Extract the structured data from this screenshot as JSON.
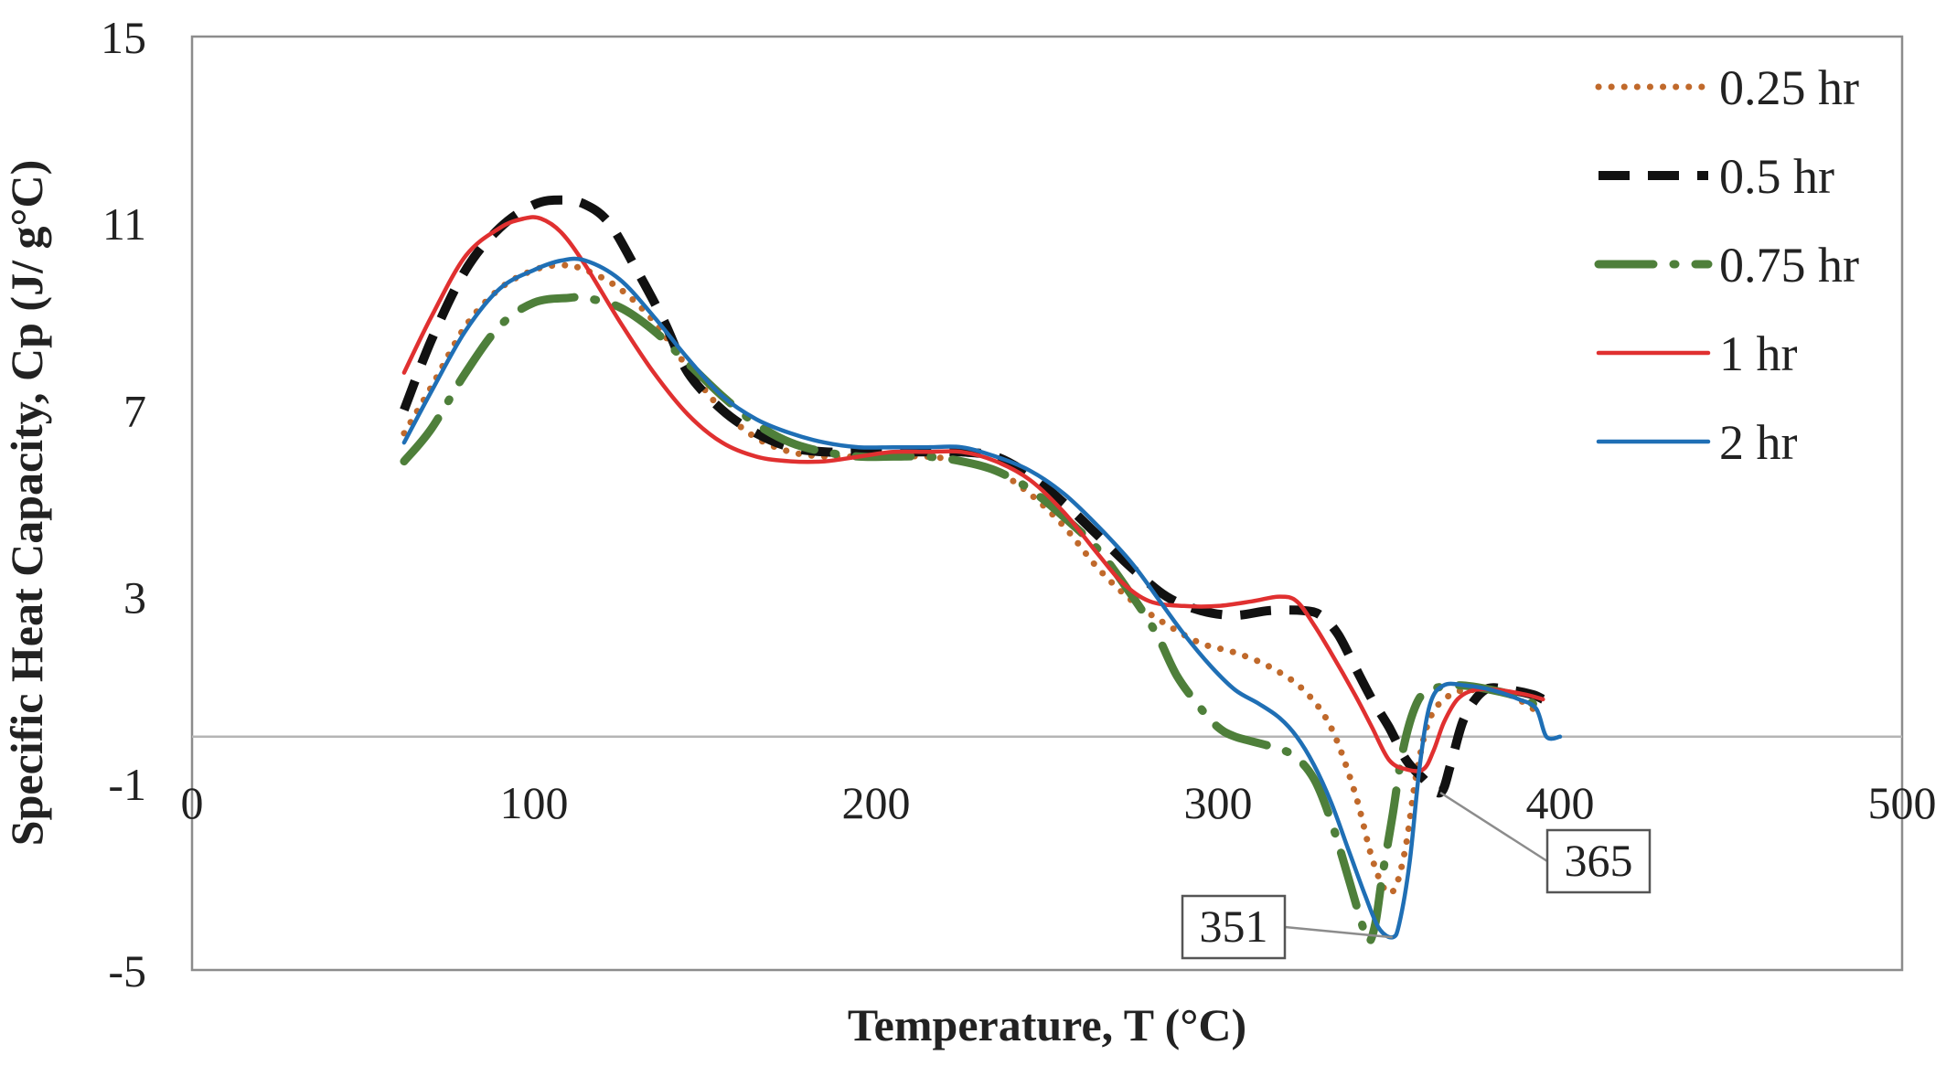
{
  "chart_data": {
    "type": "line",
    "xlabel": "Temperature, T (°C)",
    "ylabel": "Specific Heat Capacity, Cp (J/ g°C)",
    "xlim": [
      0,
      500
    ],
    "ylim": [
      -5,
      15
    ],
    "x_ticks": [
      0,
      100,
      200,
      300,
      400,
      500
    ],
    "y_ticks": [
      -5,
      -1,
      3,
      7,
      11,
      15
    ],
    "grid": false,
    "zero_line": true,
    "legend_position": "top-right",
    "series": [
      {
        "name": "0.25 hr",
        "color": "#c0692b",
        "style": "dotted",
        "points": [
          [
            62,
            6.5
          ],
          [
            70,
            7.5
          ],
          [
            80,
            8.8
          ],
          [
            90,
            9.6
          ],
          [
            100,
            10.0
          ],
          [
            108,
            10.1
          ],
          [
            115,
            10.0
          ],
          [
            125,
            9.6
          ],
          [
            135,
            8.9
          ],
          [
            145,
            7.9
          ],
          [
            155,
            7.0
          ],
          [
            165,
            6.4
          ],
          [
            175,
            6.1
          ],
          [
            185,
            6.0
          ],
          [
            195,
            6.0
          ],
          [
            205,
            6.0
          ],
          [
            215,
            6.0
          ],
          [
            225,
            5.9
          ],
          [
            235,
            5.7
          ],
          [
            245,
            5.2
          ],
          [
            255,
            4.5
          ],
          [
            265,
            3.6
          ],
          [
            275,
            2.9
          ],
          [
            285,
            2.4
          ],
          [
            295,
            2.0
          ],
          [
            305,
            1.8
          ],
          [
            315,
            1.5
          ],
          [
            325,
            1.0
          ],
          [
            333,
            0.2
          ],
          [
            340,
            -1.2
          ],
          [
            345,
            -2.6
          ],
          [
            349,
            -3.3
          ],
          [
            352,
            -3.2
          ],
          [
            355,
            -2.3
          ],
          [
            358,
            -0.8
          ],
          [
            362,
            0.4
          ],
          [
            368,
            0.9
          ],
          [
            375,
            1.0
          ],
          [
            385,
            0.9
          ],
          [
            392,
            0.6
          ],
          [
            395,
            0.5
          ]
        ]
      },
      {
        "name": "0.5 hr",
        "color": "#111111",
        "style": "dashed",
        "points": [
          [
            62,
            7.0
          ],
          [
            70,
            8.5
          ],
          [
            80,
            10.0
          ],
          [
            90,
            10.9
          ],
          [
            100,
            11.4
          ],
          [
            108,
            11.5
          ],
          [
            115,
            11.4
          ],
          [
            122,
            11.0
          ],
          [
            130,
            10.0
          ],
          [
            138,
            8.9
          ],
          [
            145,
            7.8
          ],
          [
            155,
            7.0
          ],
          [
            165,
            6.5
          ],
          [
            175,
            6.2
          ],
          [
            185,
            6.1
          ],
          [
            195,
            6.1
          ],
          [
            205,
            6.1
          ],
          [
            215,
            6.1
          ],
          [
            225,
            6.1
          ],
          [
            235,
            6.0
          ],
          [
            245,
            5.6
          ],
          [
            255,
            5.0
          ],
          [
            265,
            4.3
          ],
          [
            275,
            3.6
          ],
          [
            285,
            3.0
          ],
          [
            295,
            2.7
          ],
          [
            305,
            2.6
          ],
          [
            315,
            2.7
          ],
          [
            325,
            2.7
          ],
          [
            330,
            2.6
          ],
          [
            335,
            2.2
          ],
          [
            340,
            1.5
          ],
          [
            345,
            0.8
          ],
          [
            350,
            0.2
          ],
          [
            355,
            -0.5
          ],
          [
            360,
            -0.9
          ],
          [
            365,
            -1.2
          ],
          [
            368,
            -0.6
          ],
          [
            372,
            0.4
          ],
          [
            378,
            1.0
          ],
          [
            385,
            1.0
          ],
          [
            392,
            0.9
          ],
          [
            395,
            0.8
          ]
        ]
      },
      {
        "name": "0.75 hr",
        "color": "#4e7f3a",
        "style": "dash-dot",
        "points": [
          [
            62,
            5.9
          ],
          [
            70,
            6.6
          ],
          [
            80,
            7.8
          ],
          [
            90,
            8.8
          ],
          [
            100,
            9.3
          ],
          [
            110,
            9.4
          ],
          [
            115,
            9.4
          ],
          [
            125,
            9.2
          ],
          [
            135,
            8.7
          ],
          [
            145,
            8.0
          ],
          [
            155,
            7.3
          ],
          [
            165,
            6.7
          ],
          [
            175,
            6.3
          ],
          [
            185,
            6.1
          ],
          [
            195,
            6.0
          ],
          [
            205,
            6.0
          ],
          [
            215,
            6.0
          ],
          [
            225,
            5.9
          ],
          [
            235,
            5.7
          ],
          [
            245,
            5.3
          ],
          [
            255,
            4.7
          ],
          [
            265,
            4.0
          ],
          [
            275,
            3.0
          ],
          [
            282,
            2.2
          ],
          [
            288,
            1.3
          ],
          [
            295,
            0.6
          ],
          [
            300,
            0.2
          ],
          [
            305,
            0.0
          ],
          [
            315,
            -0.2
          ],
          [
            322,
            -0.4
          ],
          [
            328,
            -0.9
          ],
          [
            333,
            -1.8
          ],
          [
            338,
            -3.0
          ],
          [
            342,
            -4.0
          ],
          [
            344,
            -4.4
          ],
          [
            346,
            -4.0
          ],
          [
            348,
            -3.0
          ],
          [
            351,
            -1.7
          ],
          [
            354,
            -0.3
          ],
          [
            358,
            0.7
          ],
          [
            362,
            1.0
          ],
          [
            370,
            1.1
          ],
          [
            380,
            1.0
          ],
          [
            390,
            0.8
          ],
          [
            395,
            0.5
          ]
        ]
      },
      {
        "name": "1 hr",
        "color": "#e03030",
        "style": "solid",
        "points": [
          [
            62,
            7.8
          ],
          [
            70,
            9.0
          ],
          [
            80,
            10.3
          ],
          [
            90,
            10.9
          ],
          [
            97,
            11.1
          ],
          [
            102,
            11.1
          ],
          [
            108,
            10.8
          ],
          [
            115,
            10.1
          ],
          [
            125,
            8.9
          ],
          [
            135,
            7.8
          ],
          [
            145,
            6.9
          ],
          [
            155,
            6.3
          ],
          [
            165,
            6.0
          ],
          [
            175,
            5.9
          ],
          [
            185,
            5.9
          ],
          [
            195,
            6.0
          ],
          [
            205,
            6.1
          ],
          [
            215,
            6.1
          ],
          [
            225,
            6.1
          ],
          [
            235,
            5.9
          ],
          [
            245,
            5.5
          ],
          [
            255,
            4.8
          ],
          [
            265,
            3.9
          ],
          [
            272,
            3.3
          ],
          [
            280,
            2.9
          ],
          [
            290,
            2.8
          ],
          [
            300,
            2.8
          ],
          [
            310,
            2.9
          ],
          [
            318,
            3.0
          ],
          [
            323,
            2.9
          ],
          [
            328,
            2.4
          ],
          [
            333,
            1.8
          ],
          [
            340,
            0.9
          ],
          [
            345,
            0.2
          ],
          [
            350,
            -0.5
          ],
          [
            355,
            -0.7
          ],
          [
            360,
            -0.7
          ],
          [
            363,
            -0.3
          ],
          [
            366,
            0.3
          ],
          [
            370,
            0.8
          ],
          [
            375,
            1.0
          ],
          [
            382,
            1.0
          ],
          [
            390,
            0.9
          ],
          [
            395,
            0.8
          ]
        ]
      },
      {
        "name": "2 hr",
        "color": "#1f6fb5",
        "style": "solid",
        "points": [
          [
            62,
            6.3
          ],
          [
            70,
            7.4
          ],
          [
            80,
            8.7
          ],
          [
            90,
            9.6
          ],
          [
            100,
            10.0
          ],
          [
            108,
            10.2
          ],
          [
            115,
            10.2
          ],
          [
            125,
            9.8
          ],
          [
            135,
            9.0
          ],
          [
            145,
            8.1
          ],
          [
            155,
            7.3
          ],
          [
            165,
            6.8
          ],
          [
            175,
            6.5
          ],
          [
            185,
            6.3
          ],
          [
            195,
            6.2
          ],
          [
            205,
            6.2
          ],
          [
            215,
            6.2
          ],
          [
            225,
            6.2
          ],
          [
            235,
            6.0
          ],
          [
            245,
            5.7
          ],
          [
            255,
            5.2
          ],
          [
            265,
            4.5
          ],
          [
            275,
            3.7
          ],
          [
            283,
            2.9
          ],
          [
            290,
            2.2
          ],
          [
            298,
            1.5
          ],
          [
            305,
            1.0
          ],
          [
            312,
            0.7
          ],
          [
            318,
            0.4
          ],
          [
            323,
            0.0
          ],
          [
            328,
            -0.6
          ],
          [
            333,
            -1.4
          ],
          [
            338,
            -2.4
          ],
          [
            343,
            -3.4
          ],
          [
            347,
            -4.1
          ],
          [
            351,
            -4.3
          ],
          [
            353,
            -4.0
          ],
          [
            356,
            -2.7
          ],
          [
            359,
            -0.6
          ],
          [
            362,
            0.7
          ],
          [
            366,
            1.1
          ],
          [
            372,
            1.1
          ],
          [
            380,
            1.0
          ],
          [
            388,
            0.8
          ],
          [
            393,
            0.6
          ],
          [
            396,
            0.0
          ],
          [
            400,
            0.0
          ]
        ]
      }
    ],
    "annotations": [
      {
        "text": "351",
        "x": 351,
        "y": -4.3
      },
      {
        "text": "365",
        "x": 365,
        "y": -1.2
      }
    ]
  }
}
